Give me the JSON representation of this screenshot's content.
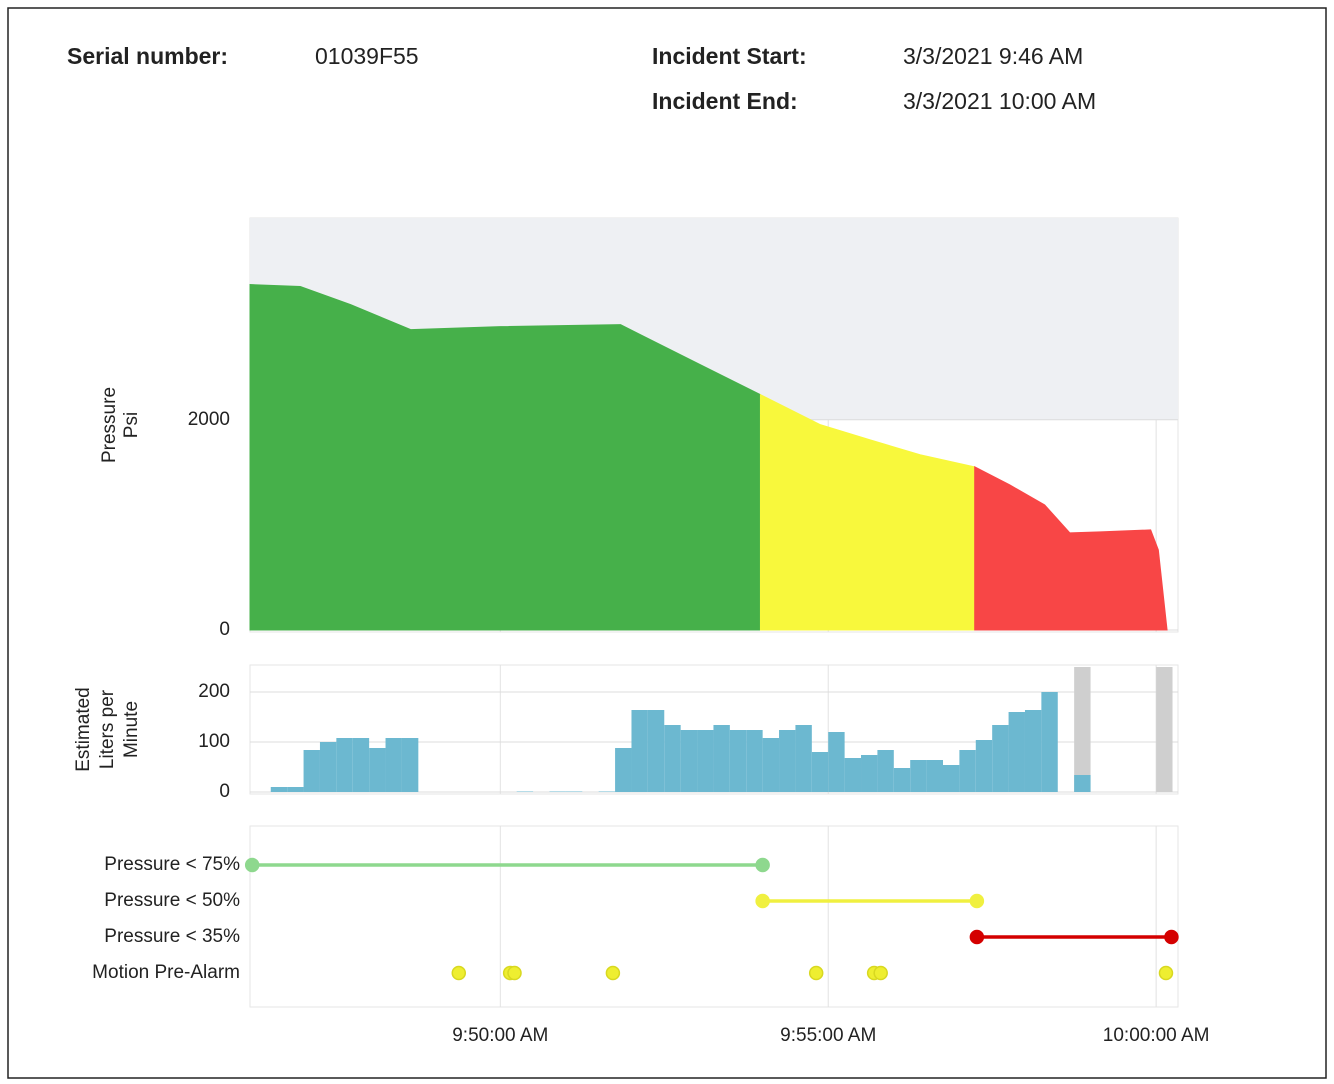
{
  "header": {
    "serial_label": "Serial number:",
    "serial": "01039F55",
    "start_label": "Incident Start:",
    "start": "3/3/2021 9:46 AM",
    "end_label": "Incident End:",
    "end": "3/3/2021 10:00 AM"
  },
  "chart_data": [
    {
      "type": "area",
      "ylabel": [
        "Pressure",
        "Psi"
      ],
      "ylim": [
        0,
        3900
      ],
      "yticks": [
        0,
        2000
      ],
      "grid": true,
      "series": [
        {
          "color": "#46b04a",
          "x": [
            "9:46:11",
            "9:46:57",
            "9:47:43",
            "9:48:38",
            "9:50:00",
            "9:51:50",
            "9:52:08",
            "9:53:03",
            "9:53:58"
          ],
          "values": [
            3286,
            3267,
            3095,
            2857,
            2886,
            2905,
            2810,
            2524,
            2238
          ]
        },
        {
          "color": "#f8f83c",
          "x": [
            "9:53:58",
            "9:54:53",
            "9:55:38",
            "9:56:24",
            "9:57:14"
          ],
          "values": [
            2238,
            1952,
            1810,
            1667,
            1552
          ]
        },
        {
          "color": "#f84646",
          "x": [
            "9:57:14",
            "9:57:46",
            "9:58:18",
            "9:58:41",
            "9:59:09",
            "9:59:55",
            "10:00:02",
            "10:00:10"
          ],
          "values": [
            1552,
            1381,
            1190,
            924,
            933,
            952,
            762,
            0
          ]
        }
      ]
    },
    {
      "type": "histogram",
      "ylabel": [
        "Estimated",
        "Liters per",
        "Minute"
      ],
      "ylim": [
        0,
        250
      ],
      "yticks": [
        0,
        100,
        200
      ],
      "grid": true,
      "color": "#6cb8d0",
      "shade_color": "#cfcfcf",
      "bins": [
        "9:46:30",
        "9:46:45",
        "9:47:00",
        "9:47:15",
        "9:47:30",
        "9:47:45",
        "9:48:00",
        "9:48:15",
        "9:48:30",
        "9:48:45",
        "9:49:00",
        "9:49:15",
        "9:49:30",
        "9:49:45",
        "9:50:00",
        "9:50:15",
        "9:50:30",
        "9:50:45",
        "9:51:00",
        "9:51:15",
        "9:51:30",
        "9:51:45",
        "9:52:00",
        "9:52:15",
        "9:52:30",
        "9:52:45",
        "9:53:00",
        "9:53:15",
        "9:53:30",
        "9:53:45",
        "9:54:00",
        "9:54:15",
        "9:54:30",
        "9:54:45",
        "9:55:00",
        "9:55:15",
        "9:55:30",
        "9:55:45",
        "9:56:00",
        "9:56:15",
        "9:56:30",
        "9:56:45",
        "9:57:00",
        "9:57:15",
        "9:57:30",
        "9:57:45",
        "9:58:00",
        "9:58:15",
        "9:58:30",
        "9:58:45",
        "9:59:00"
      ],
      "values": [
        10,
        10,
        84,
        100,
        108,
        108,
        88,
        108,
        108,
        0,
        0,
        0,
        0,
        0,
        0,
        1,
        0,
        1,
        1,
        0,
        1,
        88,
        164,
        164,
        134,
        124,
        124,
        134,
        124,
        124,
        108,
        124,
        134,
        80,
        120,
        68,
        74,
        84,
        48,
        64,
        64,
        54,
        84,
        104,
        134,
        160,
        164,
        200,
        null,
        34
      ],
      "shaded_spans": [
        [
          "9:58:45",
          "9:59:00"
        ],
        [
          "10:00:00",
          "10:00:15"
        ]
      ]
    },
    {
      "type": "timeline",
      "categories": [
        "Pressure < 75%",
        "Pressure < 50%",
        "Pressure < 35%",
        "Motion Pre-Alarm"
      ],
      "xlim": [
        "9:46:11 AM",
        "10:00:20 AM"
      ],
      "xticks": [
        "9:50:00 AM",
        "9:55:00 AM",
        "10:00:00 AM"
      ],
      "series": [
        {
          "color": "#8ed88e",
          "line": true,
          "x": [
            "9:46:13",
            "9:54:00"
          ]
        },
        {
          "color": "#f0f040",
          "line": true,
          "x": [
            "9:54:00",
            "9:57:16"
          ]
        },
        {
          "color": "#d40000",
          "line": true,
          "x": [
            "9:57:16",
            "10:00:14"
          ]
        },
        {
          "color": "#eeee30",
          "line": false,
          "x": [
            "9:49:22",
            "9:50:09",
            "9:50:13",
            "9:51:43",
            "9:54:49",
            "9:55:42",
            "9:55:48",
            "10:00:09"
          ]
        }
      ]
    }
  ]
}
